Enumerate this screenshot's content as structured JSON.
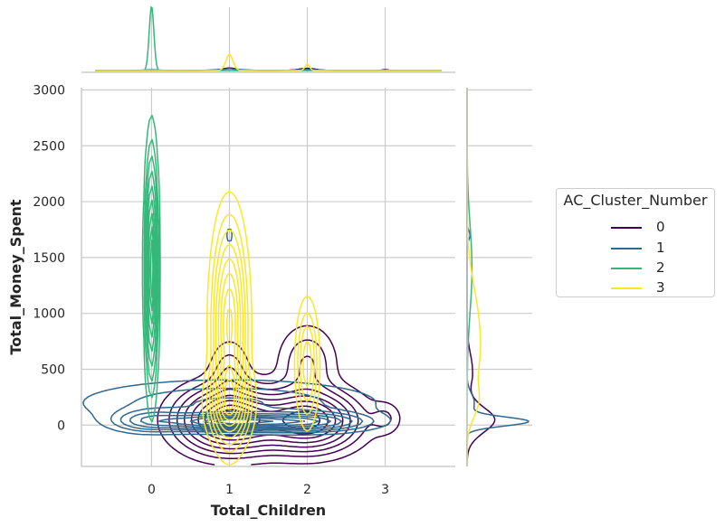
{
  "chart_data": {
    "type": "kde-joint",
    "xlabel": "Total_Children",
    "ylabel": "Total_Money_Spent",
    "xticks": [
      0,
      1,
      2,
      3
    ],
    "yticks": [
      0,
      500,
      1000,
      1500,
      2000,
      2500,
      3000
    ],
    "xlim": [
      -0.9,
      3.9
    ],
    "ylim": [
      -370,
      3020
    ],
    "grid": true,
    "legend": {
      "title": "AC_Cluster_Number",
      "placement": "right",
      "entries": [
        "0",
        "1",
        "2",
        "3"
      ]
    },
    "series": [
      {
        "name": "0",
        "color": "#440154",
        "modes": [
          {
            "x": 1,
            "y": 50,
            "sx": 0.38,
            "sy": 170,
            "w": 1.0
          },
          {
            "x": 2,
            "y": 40,
            "sx": 0.38,
            "sy": 160,
            "w": 0.9
          },
          {
            "x": 1,
            "y": 450,
            "sx": 0.15,
            "sy": 180,
            "w": 0.2
          },
          {
            "x": 2,
            "y": 550,
            "sx": 0.22,
            "sy": 200,
            "w": 0.22
          },
          {
            "x": 3,
            "y": 60,
            "sx": 0.13,
            "sy": 90,
            "w": 0.13
          },
          {
            "x": 3,
            "y": 420,
            "sx": 0.05,
            "sy": 40,
            "w": 0.04
          }
        ]
      },
      {
        "name": "1",
        "color": "#31688e",
        "modes": [
          {
            "x": 1,
            "y": 30,
            "sx": 0.5,
            "sy": 45,
            "w": 1.0
          },
          {
            "x": 0,
            "y": 40,
            "sx": 0.3,
            "sy": 60,
            "w": 0.4
          },
          {
            "x": 2,
            "y": 30,
            "sx": 0.45,
            "sy": 50,
            "w": 0.7
          },
          {
            "x": 1,
            "y": 200,
            "sx": 1.1,
            "sy": 120,
            "w": 0.25
          },
          {
            "x": 1,
            "y": 1700,
            "sx": 0.03,
            "sy": 60,
            "w": 0.1
          }
        ]
      },
      {
        "name": "2",
        "color": "#35b779",
        "modes": [
          {
            "x": 0,
            "y": 1400,
            "sx": 0.045,
            "sy": 560,
            "w": 1.0
          }
        ]
      },
      {
        "name": "3",
        "color": "#fde725",
        "modes": [
          {
            "x": 1,
            "y": 900,
            "sx": 0.12,
            "sy": 500,
            "w": 1.0
          },
          {
            "x": 1,
            "y": 200,
            "sx": 0.15,
            "sy": 200,
            "w": 0.8
          },
          {
            "x": 2,
            "y": 550,
            "sx": 0.08,
            "sy": 300,
            "w": 0.45
          }
        ]
      }
    ]
  }
}
